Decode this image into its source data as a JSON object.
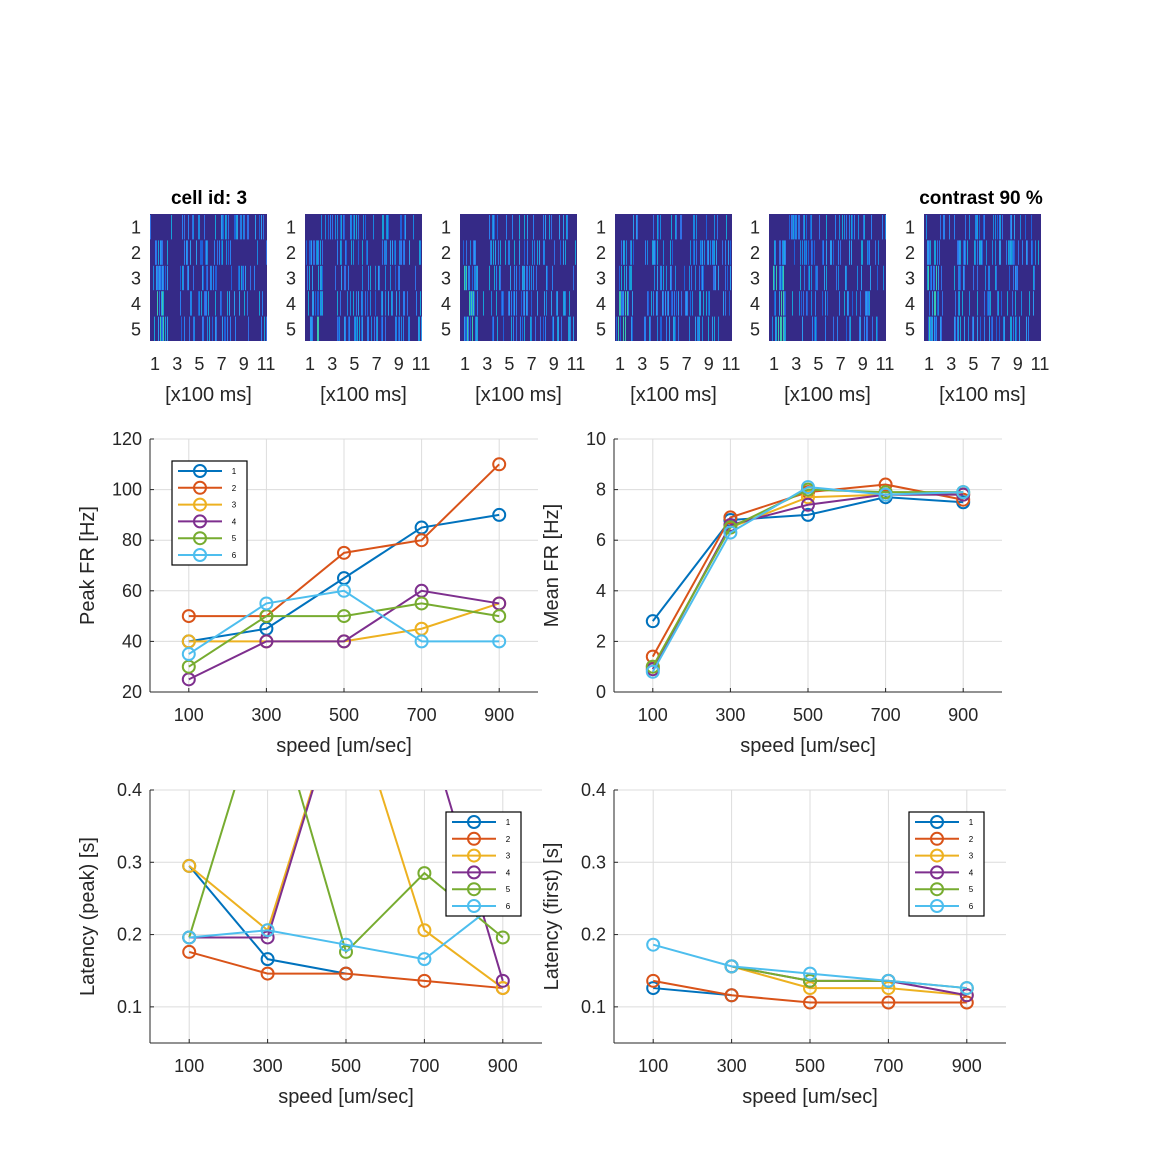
{
  "header": {
    "left_title": "cell id: 3",
    "right_title": "contrast 90 %"
  },
  "colors": {
    "series": [
      "#0072BD",
      "#D95319",
      "#EDB120",
      "#7E2F8E",
      "#77AC30",
      "#4DBEEE"
    ],
    "raster_bg": "#352A87",
    "grid": "#dcdcdc",
    "axis": "#262626"
  },
  "chart_data": [
    {
      "type": "heatmap",
      "panels": 6,
      "yticks": [
        "1",
        "2",
        "3",
        "4",
        "5"
      ],
      "xticks": [
        "1",
        "3",
        "5",
        "7",
        "9",
        "11"
      ],
      "xlabel": "[x100 ms]"
    },
    {
      "type": "line",
      "x": [
        100,
        300,
        500,
        700,
        900
      ],
      "xlabel": "speed [um/sec]",
      "ylabel": "Peak FR [Hz]",
      "ylim": [
        20,
        120
      ],
      "yticks": [
        20,
        40,
        60,
        80,
        100,
        120
      ],
      "xlim": [
        0,
        1000
      ],
      "legend": "top-left",
      "grid": true,
      "series": [
        {
          "name": "1",
          "values": [
            40,
            45,
            65,
            85,
            90
          ]
        },
        {
          "name": "2",
          "values": [
            50,
            50,
            75,
            80,
            110
          ]
        },
        {
          "name": "3",
          "values": [
            40,
            40,
            40,
            45,
            55
          ]
        },
        {
          "name": "4",
          "values": [
            25,
            40,
            40,
            60,
            55
          ]
        },
        {
          "name": "5",
          "values": [
            30,
            50,
            50,
            55,
            50
          ]
        },
        {
          "name": "6",
          "values": [
            35,
            55,
            60,
            40,
            40
          ]
        }
      ]
    },
    {
      "type": "line",
      "x": [
        100,
        300,
        500,
        700,
        900
      ],
      "xlabel": "speed [um/sec]",
      "ylabel": "Mean FR [Hz]",
      "ylim": [
        0,
        10
      ],
      "yticks": [
        0,
        2,
        4,
        6,
        8,
        10
      ],
      "xlim": [
        0,
        1000
      ],
      "legend": "none",
      "grid": true,
      "series": [
        {
          "name": "1",
          "values": [
            2.8,
            6.8,
            7.0,
            7.7,
            7.5
          ]
        },
        {
          "name": "2",
          "values": [
            1.4,
            6.9,
            7.9,
            8.2,
            7.6
          ]
        },
        {
          "name": "3",
          "values": [
            1.0,
            6.5,
            7.7,
            7.8,
            7.8
          ]
        },
        {
          "name": "4",
          "values": [
            0.9,
            6.6,
            7.4,
            7.8,
            7.8
          ]
        },
        {
          "name": "5",
          "values": [
            1.0,
            6.5,
            8.0,
            7.9,
            7.9
          ]
        },
        {
          "name": "6",
          "values": [
            0.8,
            6.3,
            8.1,
            7.8,
            7.9
          ]
        }
      ]
    },
    {
      "type": "line",
      "x": [
        100,
        300,
        500,
        700,
        900
      ],
      "xlabel": "speed [um/sec]",
      "ylabel": "Latency (peak) [s]",
      "ylim": [
        0.05,
        0.4
      ],
      "yticks": [
        0.1,
        0.2,
        0.3,
        0.4
      ],
      "xlim": [
        0,
        1000
      ],
      "legend": "top-right",
      "grid": true,
      "series": [
        {
          "name": "1",
          "values": [
            0.295,
            0.166,
            0.146,
            null,
            null
          ]
        },
        {
          "name": "2",
          "values": [
            0.176,
            0.146,
            0.146,
            0.136,
            0.126
          ]
        },
        {
          "name": "3",
          "values": [
            0.295,
            0.206,
            0.55,
            0.206,
            0.126
          ]
        },
        {
          "name": "4",
          "values": [
            0.196,
            0.196,
            0.55,
            0.5,
            0.136
          ]
        },
        {
          "name": "5",
          "values": [
            0.196,
            0.55,
            0.176,
            0.285,
            0.196
          ]
        },
        {
          "name": "6",
          "values": [
            0.196,
            0.206,
            0.186,
            0.166,
            0.25
          ]
        }
      ]
    },
    {
      "type": "line",
      "x": [
        100,
        300,
        500,
        700,
        900
      ],
      "xlabel": "speed [um/sec]",
      "ylabel": "Latency (first) [s]",
      "ylim": [
        0.05,
        0.4
      ],
      "yticks": [
        0.1,
        0.2,
        0.3,
        0.4
      ],
      "xlim": [
        0,
        1000
      ],
      "legend": "top-right",
      "grid": true,
      "series": [
        {
          "name": "1",
          "values": [
            0.126,
            0.116,
            null,
            null,
            null
          ]
        },
        {
          "name": "2",
          "values": [
            0.136,
            0.116,
            0.106,
            0.106,
            0.106
          ]
        },
        {
          "name": "3",
          "values": [
            null,
            0.156,
            0.126,
            0.126,
            0.116
          ]
        },
        {
          "name": "4",
          "values": [
            null,
            0.156,
            0.136,
            0.136,
            0.116
          ]
        },
        {
          "name": "5",
          "values": [
            null,
            0.156,
            0.136,
            0.136,
            0.126
          ]
        },
        {
          "name": "6",
          "values": [
            0.186,
            0.156,
            0.146,
            0.136,
            0.126
          ]
        }
      ]
    }
  ]
}
